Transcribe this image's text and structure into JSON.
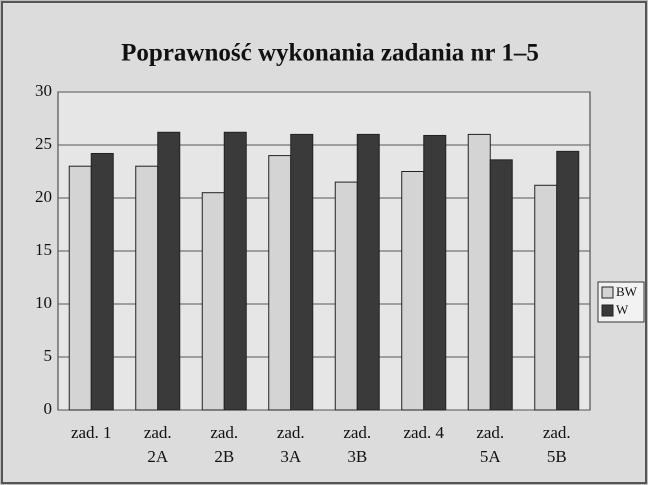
{
  "chart_data": {
    "type": "bar",
    "title": "Poprawność wykonania zadania nr 1–5",
    "categories": [
      "zad. 1",
      "zad. 2A",
      "zad. 2B",
      "zad. 3A",
      "zad. 3B",
      "zad. 4",
      "zad. 5A",
      "zad. 5B"
    ],
    "series": [
      {
        "name": "BW",
        "color": "#d4d4d4",
        "values": [
          23,
          23,
          20.5,
          24,
          21.5,
          22.5,
          26,
          21.2
        ]
      },
      {
        "name": "W",
        "color": "#3a3a3a",
        "values": [
          24.2,
          26.2,
          26.2,
          26,
          26,
          25.9,
          23.6,
          24.4
        ]
      }
    ],
    "ylim": [
      0,
      30
    ],
    "yticks": [
      0,
      5,
      10,
      15,
      20,
      25,
      30
    ],
    "grid": true,
    "legend": "right"
  }
}
